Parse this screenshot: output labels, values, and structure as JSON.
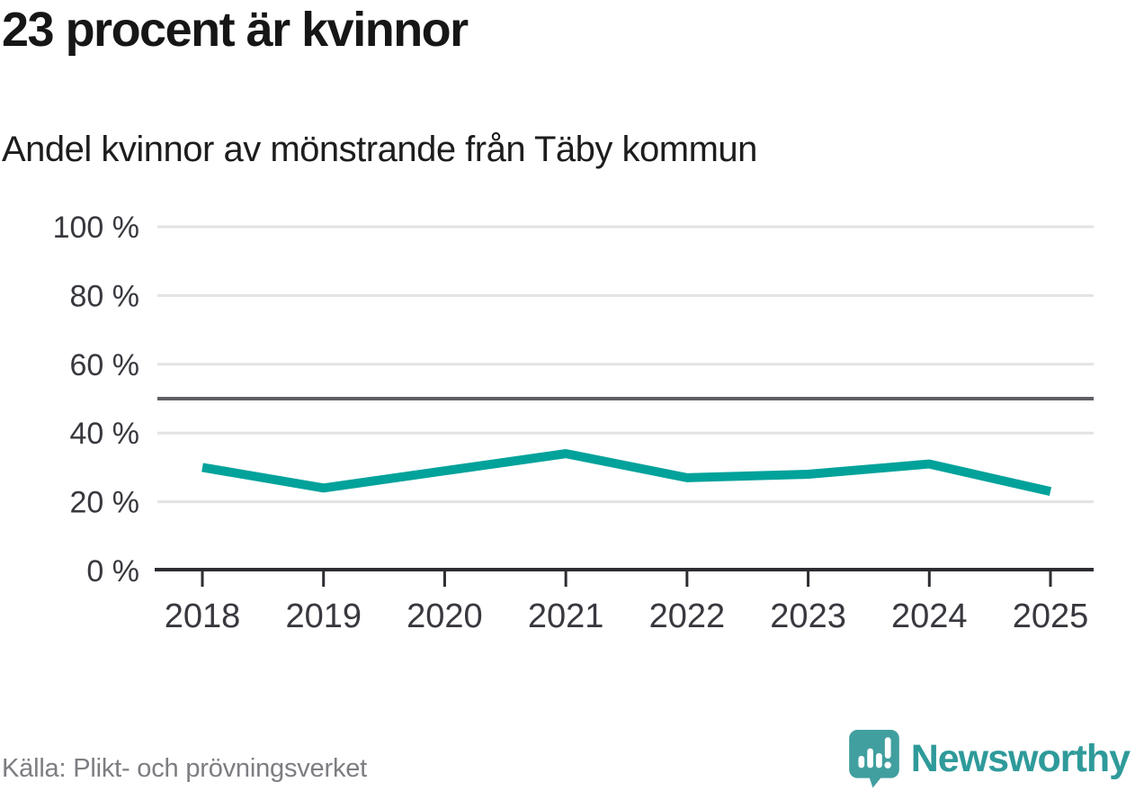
{
  "chart_data": {
    "type": "line",
    "title": "23 procent är kvinnor",
    "subtitle": "Andel kvinnor av mönstrande från Täby kommun",
    "source": "Källa: Plikt- och prövningsverket",
    "categories": [
      "2018",
      "2019",
      "2020",
      "2021",
      "2022",
      "2023",
      "2024",
      "2025"
    ],
    "series": [
      {
        "name": "Andel kvinnor",
        "values": [
          30,
          24,
          29,
          34,
          27,
          28,
          31,
          23
        ]
      }
    ],
    "unit": "%",
    "ylim": [
      0,
      100
    ],
    "yticks": [
      0,
      20,
      40,
      60,
      80,
      100
    ],
    "ytick_format": "{v} %",
    "reference_line": 50,
    "grid": true,
    "legend_position": "none",
    "xlabel": "",
    "ylabel": ""
  },
  "logo": {
    "icon": "newsworthy-bubble-chart-icon",
    "wordmark": "Newsworthy"
  },
  "colors": {
    "line": "#00a29a",
    "reference_line": "#5f5f66",
    "grid": "#e3e3e3",
    "axis": "#2d2d32",
    "tick_label": "#38383f",
    "title_text": "#161616",
    "source_text": "#7d7d82",
    "brand_teal": "#419f9f"
  }
}
